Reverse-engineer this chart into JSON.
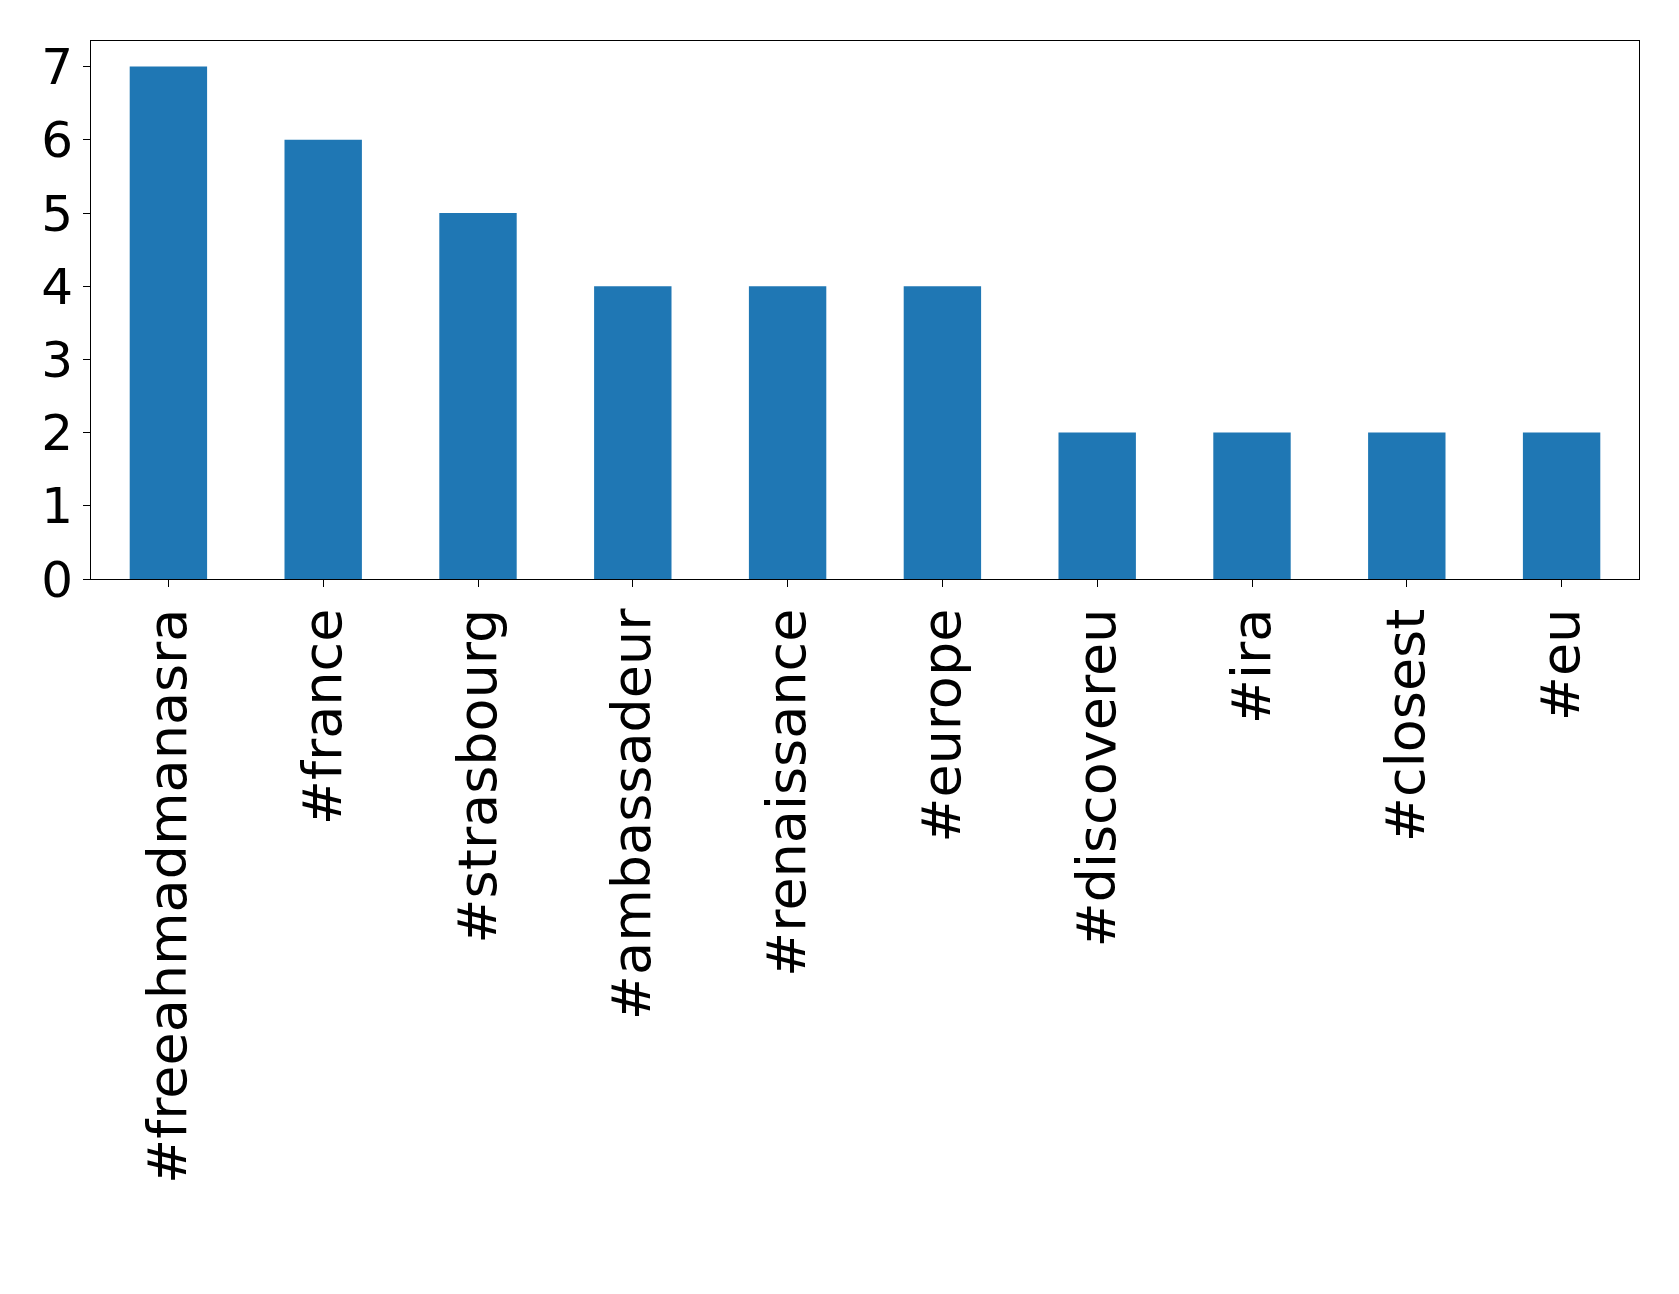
{
  "chart_data": {
    "type": "bar",
    "categories": [
      "#freeahmadmanasra",
      "#france",
      "#strasbourg",
      "#ambassadeur",
      "#renaissance",
      "#europe",
      "#discovereu",
      "#ira",
      "#closest",
      "#eu"
    ],
    "values": [
      7,
      6,
      5,
      4,
      4,
      4,
      2,
      2,
      2,
      2
    ],
    "color": "#1f77b4",
    "ylim": [
      0,
      7.35
    ],
    "yticks": [
      0,
      1,
      2,
      3,
      4,
      5,
      6,
      7
    ]
  }
}
